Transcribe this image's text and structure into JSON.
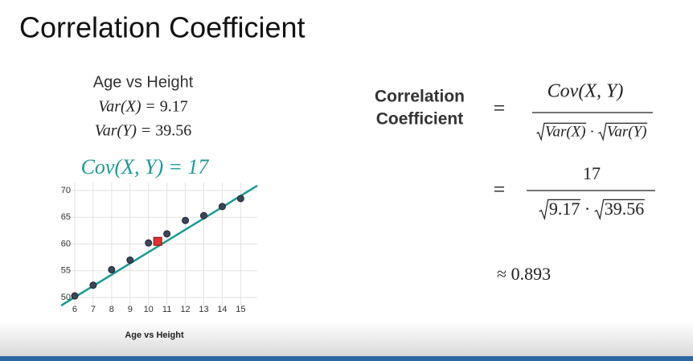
{
  "header": {
    "title": "Correlation Coefficient"
  },
  "left": {
    "heading": "Age vs Height",
    "var_x": {
      "label": "Var(X)",
      "op": "=",
      "value": "9.17"
    },
    "var_y": {
      "label": "Var(Y)",
      "op": "=",
      "value": "39.56"
    },
    "cov": {
      "label": "Cov(X, Y)",
      "op": "=",
      "value": "17"
    }
  },
  "chart_data": {
    "type": "scatter",
    "x_label": "Age vs Height",
    "x": [
      6,
      7,
      8,
      9,
      10,
      11,
      12,
      13,
      14,
      15
    ],
    "y": [
      50.3,
      52.3,
      55.2,
      57,
      60.2,
      61.9,
      64.4,
      65.3,
      67,
      68.5
    ],
    "color": "#3b4658",
    "highlight": {
      "x": 10.5,
      "y": 60.5,
      "color": "#e0322d"
    },
    "trend": {
      "x": [
        5.26,
        15.9
      ],
      "y": [
        48.5,
        70.9
      ],
      "color": "#1a9a93"
    },
    "xlim": [
      5.26,
      15.9
    ],
    "ylim": [
      48.5,
      71.5
    ],
    "xticks": [
      6,
      7,
      8,
      9,
      10,
      11,
      12,
      13,
      14,
      15
    ],
    "yticks": [
      50,
      55,
      60,
      65,
      70
    ],
    "grid": true
  },
  "formula": {
    "lhs": [
      "Correlation",
      "Coefficient"
    ],
    "op1": "=",
    "numerator": "Cov(X, Y)",
    "denominator": {
      "left": "Var(X)",
      "dot": "·",
      "right": "Var(Y)"
    },
    "op2": "=",
    "numerator2": "17",
    "denominator2": {
      "left": "9.17",
      "dot": "·",
      "right": "39.56"
    },
    "approx": "≈ 0.893"
  }
}
